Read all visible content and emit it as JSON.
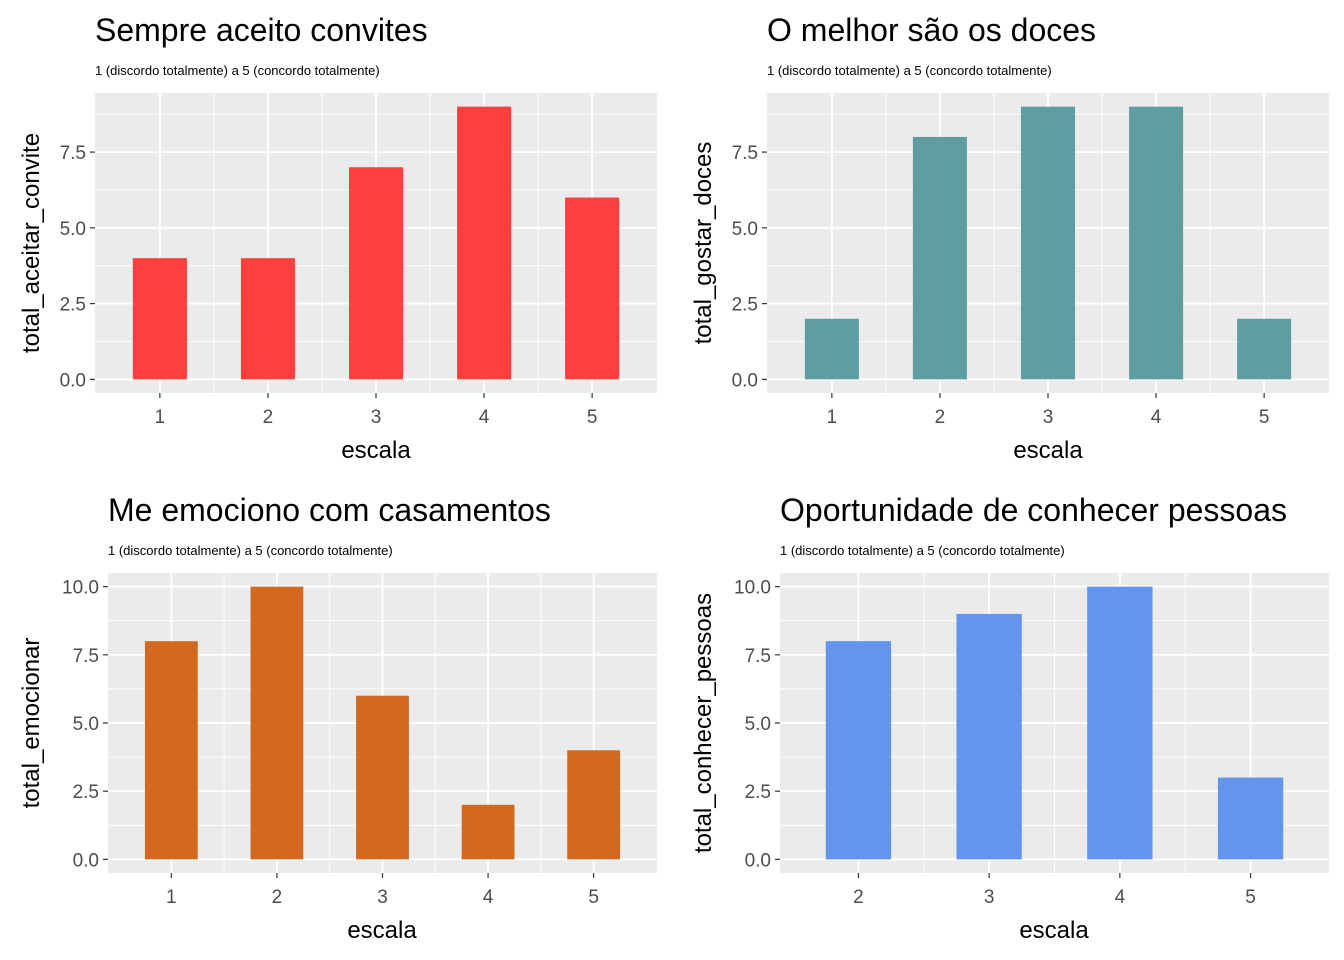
{
  "chart_data": [
    {
      "type": "bar",
      "title": "Sempre aceito convites",
      "subtitle": "1 (discordo totalmente) a 5 (concordo totalmente)",
      "xlabel": "escala",
      "ylabel": "total_aceitar_convite",
      "categories": [
        "1",
        "2",
        "3",
        "4",
        "5"
      ],
      "values": [
        4,
        4,
        7,
        9,
        6
      ],
      "color": "#FF3E3E",
      "ylim": [
        0,
        9
      ],
      "yticks": [
        "0.0",
        "2.5",
        "5.0",
        "7.5"
      ],
      "grid": true,
      "legend": "none"
    },
    {
      "type": "bar",
      "title": "O melhor são os doces",
      "subtitle": "1 (discordo totalmente) a 5 (concordo totalmente)",
      "xlabel": "escala",
      "ylabel": "total_gostar_doces",
      "categories": [
        "1",
        "2",
        "3",
        "4",
        "5"
      ],
      "values": [
        2,
        8,
        9,
        9,
        2
      ],
      "color": "#5F9EA0",
      "ylim": [
        0,
        9
      ],
      "yticks": [
        "0.0",
        "2.5",
        "5.0",
        "7.5"
      ],
      "grid": true,
      "legend": "none"
    },
    {
      "type": "bar",
      "title": "Me emociono com casamentos",
      "subtitle": "1 (discordo totalmente) a 5 (concordo totalmente)",
      "xlabel": "escala",
      "ylabel": "total_emocionar",
      "categories": [
        "1",
        "2",
        "3",
        "4",
        "5"
      ],
      "values": [
        8,
        10,
        6,
        2,
        4
      ],
      "color": "#D2691E",
      "ylim": [
        0,
        10
      ],
      "yticks": [
        "0.0",
        "2.5",
        "5.0",
        "7.5",
        "10.0"
      ],
      "grid": true,
      "legend": "none"
    },
    {
      "type": "bar",
      "title": "Oportunidade de conhecer pessoas",
      "subtitle": "1 (discordo totalmente) a 5 (concordo totalmente)",
      "xlabel": "escala",
      "ylabel": "total_conhecer_pessoas",
      "categories": [
        "2",
        "3",
        "4",
        "5"
      ],
      "values": [
        8,
        9,
        10,
        3
      ],
      "color": "#6495ED",
      "ylim": [
        0,
        10
      ],
      "yticks": [
        "0.0",
        "2.5",
        "5.0",
        "7.5",
        "10.0"
      ],
      "grid": true,
      "legend": "none"
    }
  ]
}
